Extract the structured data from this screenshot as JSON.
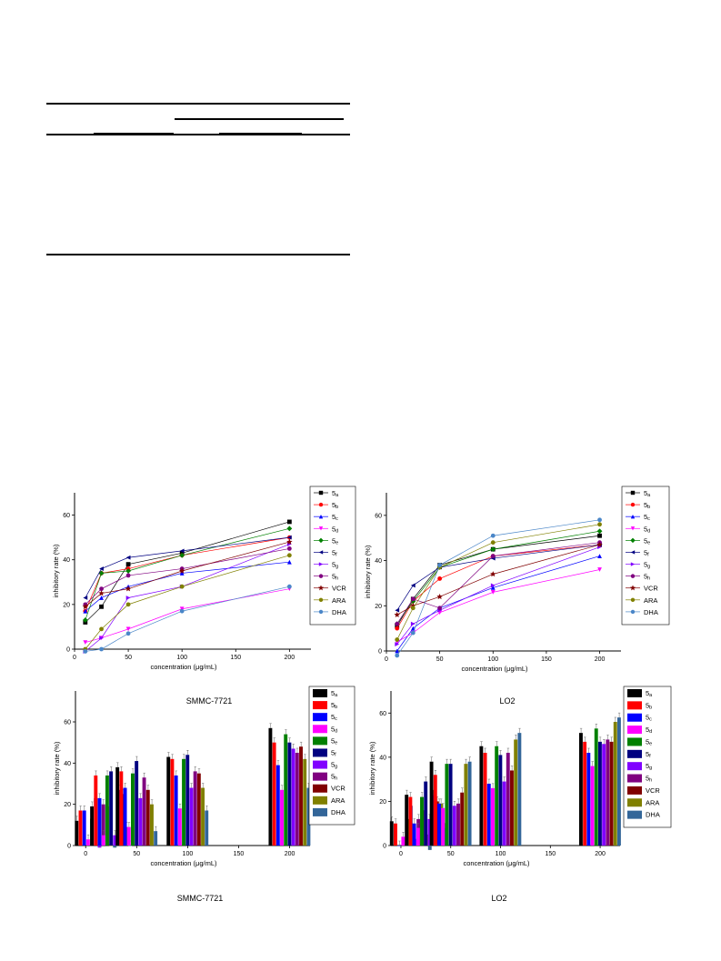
{
  "document": {
    "table_fragment": "empty table rule lines (content not legible)"
  },
  "chart_data": [
    {
      "type": "line",
      "panel": "top-left",
      "caption": "SMMC-7721",
      "xlabel": "concentration (μg/mL)",
      "ylabel": "inhibitory rate (%)",
      "xlim": [
        0,
        220
      ],
      "ylim": [
        0,
        70
      ],
      "xticks": [
        0,
        50,
        100,
        150,
        200
      ],
      "yticks": [
        0,
        20,
        40,
        60
      ],
      "legend_position": "right",
      "x": [
        10,
        25,
        50,
        100,
        200
      ],
      "series": [
        {
          "name": "5a",
          "color": "#000000",
          "marker": "square",
          "values": [
            12,
            19,
            38,
            43,
            57
          ]
        },
        {
          "name": "5b",
          "color": "#ff0000",
          "marker": "circle",
          "values": [
            17,
            34,
            36,
            42,
            50
          ]
        },
        {
          "name": "5c",
          "color": "#0000ff",
          "marker": "triangle-up",
          "values": [
            17,
            23,
            28,
            34,
            39
          ]
        },
        {
          "name": "5d",
          "color": "#ff00ff",
          "marker": "triangle-down",
          "values": [
            3,
            5,
            9,
            18,
            27
          ]
        },
        {
          "name": "5e",
          "color": "#008000",
          "marker": "diamond",
          "values": [
            13,
            34,
            35,
            42,
            54
          ]
        },
        {
          "name": "5f",
          "color": "#000080",
          "marker": "triangle-left",
          "values": [
            23,
            36,
            41,
            44,
            50
          ]
        },
        {
          "name": "5g",
          "color": "#8000ff",
          "marker": "triangle-right",
          "values": [
            -1,
            5,
            23,
            28,
            47
          ]
        },
        {
          "name": "5h",
          "color": "#800080",
          "marker": "circle",
          "values": [
            20,
            27,
            33,
            36,
            45
          ]
        },
        {
          "name": "VCR",
          "color": "#800000",
          "marker": "star",
          "values": [
            19,
            25,
            27,
            35,
            48
          ]
        },
        {
          "name": "ARA",
          "color": "#808000",
          "marker": "circle",
          "values": [
            0,
            9,
            20,
            28,
            42
          ]
        },
        {
          "name": "DHA",
          "color": "#4a86c8",
          "marker": "circle",
          "values": [
            -1,
            0,
            7,
            17,
            28
          ]
        }
      ]
    },
    {
      "type": "line",
      "panel": "top-right",
      "caption": "LO2",
      "xlabel": "concentration (μg/mL)",
      "ylabel": "inhibitory rate (%)",
      "xlim": [
        0,
        220
      ],
      "ylim": [
        0,
        70
      ],
      "xticks": [
        0,
        50,
        100,
        150,
        200
      ],
      "yticks": [
        0,
        20,
        40,
        60
      ],
      "legend_position": "right",
      "x": [
        10,
        25,
        50,
        100,
        200
      ],
      "series": [
        {
          "name": "5a",
          "color": "#000000",
          "marker": "square",
          "values": [
            11,
            23,
            38,
            45,
            51
          ]
        },
        {
          "name": "5b",
          "color": "#ff0000",
          "marker": "circle",
          "values": [
            10,
            22,
            32,
            42,
            47
          ]
        },
        {
          "name": "5c",
          "color": "#0000ff",
          "marker": "triangle-up",
          "values": [
            0,
            10,
            19,
            28,
            42
          ]
        },
        {
          "name": "5d",
          "color": "#ff00ff",
          "marker": "triangle-down",
          "values": [
            4,
            8,
            17,
            26,
            36
          ]
        },
        {
          "name": "5e",
          "color": "#008000",
          "marker": "diamond",
          "values": [
            12,
            22,
            37,
            45,
            53
          ]
        },
        {
          "name": "5f",
          "color": "#000080",
          "marker": "triangle-left",
          "values": [
            18,
            29,
            37,
            41,
            47
          ]
        },
        {
          "name": "5g",
          "color": "#8000ff",
          "marker": "triangle-right",
          "values": [
            3,
            12,
            18,
            29,
            46
          ]
        },
        {
          "name": "5h",
          "color": "#800080",
          "marker": "circle",
          "values": [
            12,
            23,
            19,
            42,
            48
          ]
        },
        {
          "name": "VCR",
          "color": "#800000",
          "marker": "star",
          "values": [
            16,
            20,
            24,
            34,
            47
          ]
        },
        {
          "name": "ARA",
          "color": "#808000",
          "marker": "circle",
          "values": [
            5,
            19,
            37,
            48,
            56
          ]
        },
        {
          "name": "DHA",
          "color": "#4a86c8",
          "marker": "circle",
          "values": [
            -2,
            8,
            38,
            51,
            58
          ]
        }
      ]
    },
    {
      "type": "bar",
      "panel": "bottom-left",
      "caption": "SMMC-7721",
      "xlabel": "concentration (μg/mL)",
      "ylabel": "inhibitory rate (%)",
      "xlim": [
        -10,
        220
      ],
      "ylim": [
        0,
        75
      ],
      "xticks": [
        0,
        50,
        100,
        150,
        200
      ],
      "yticks": [
        0,
        20,
        40,
        60
      ],
      "legend_position": "right",
      "categories": [
        10,
        25,
        50,
        100,
        200
      ],
      "series": [
        {
          "name": "5a",
          "color": "#000000",
          "values": [
            12,
            19,
            38,
            43,
            57
          ]
        },
        {
          "name": "5b",
          "color": "#ff0000",
          "values": [
            17,
            34,
            36,
            42,
            50
          ]
        },
        {
          "name": "5c",
          "color": "#0000ff",
          "values": [
            17,
            23,
            28,
            34,
            39
          ]
        },
        {
          "name": "5d",
          "color": "#ff00ff",
          "values": [
            3,
            5,
            9,
            18,
            27
          ]
        },
        {
          "name": "5e",
          "color": "#008000",
          "values": [
            13,
            34,
            35,
            42,
            54
          ]
        },
        {
          "name": "5f",
          "color": "#000080",
          "values": [
            23,
            36,
            41,
            44,
            50
          ]
        },
        {
          "name": "5g",
          "color": "#8000ff",
          "values": [
            -1,
            5,
            23,
            28,
            47
          ]
        },
        {
          "name": "5h",
          "color": "#800080",
          "values": [
            20,
            27,
            33,
            36,
            45
          ]
        },
        {
          "name": "VCR",
          "color": "#800000",
          "values": [
            19,
            25,
            27,
            35,
            48
          ]
        },
        {
          "name": "ARA",
          "color": "#808000",
          "values": [
            0,
            9,
            20,
            28,
            42
          ]
        },
        {
          "name": "DHA",
          "color": "#336699",
          "values": [
            -1,
            0,
            7,
            17,
            28
          ]
        }
      ]
    },
    {
      "type": "bar",
      "panel": "bottom-right",
      "caption": "LO2",
      "xlabel": "concentration (μg/mL)",
      "ylabel": "inhibitory rate (%)",
      "xlim": [
        -10,
        220
      ],
      "ylim": [
        0,
        70
      ],
      "xticks": [
        0,
        50,
        100,
        150,
        200
      ],
      "yticks": [
        0,
        20,
        40,
        60
      ],
      "legend_position": "right",
      "categories": [
        10,
        25,
        50,
        100,
        200
      ],
      "series": [
        {
          "name": "5a",
          "color": "#000000",
          "values": [
            11,
            23,
            38,
            45,
            51
          ]
        },
        {
          "name": "5b",
          "color": "#ff0000",
          "values": [
            10,
            22,
            32,
            42,
            47
          ]
        },
        {
          "name": "5c",
          "color": "#0000ff",
          "values": [
            0,
            10,
            19,
            28,
            42
          ]
        },
        {
          "name": "5d",
          "color": "#ff00ff",
          "values": [
            4,
            8,
            17,
            26,
            36
          ]
        },
        {
          "name": "5e",
          "color": "#008000",
          "values": [
            12,
            22,
            37,
            45,
            53
          ]
        },
        {
          "name": "5f",
          "color": "#000080",
          "values": [
            18,
            29,
            37,
            41,
            47
          ]
        },
        {
          "name": "5g",
          "color": "#8000ff",
          "values": [
            3,
            12,
            18,
            29,
            46
          ]
        },
        {
          "name": "5h",
          "color": "#800080",
          "values": [
            12,
            23,
            19,
            42,
            48
          ]
        },
        {
          "name": "VCR",
          "color": "#800000",
          "values": [
            16,
            20,
            24,
            34,
            47
          ]
        },
        {
          "name": "ARA",
          "color": "#808000",
          "values": [
            5,
            19,
            37,
            48,
            56
          ]
        },
        {
          "name": "DHA",
          "color": "#336699",
          "values": [
            -2,
            8,
            38,
            51,
            58
          ]
        }
      ]
    }
  ]
}
